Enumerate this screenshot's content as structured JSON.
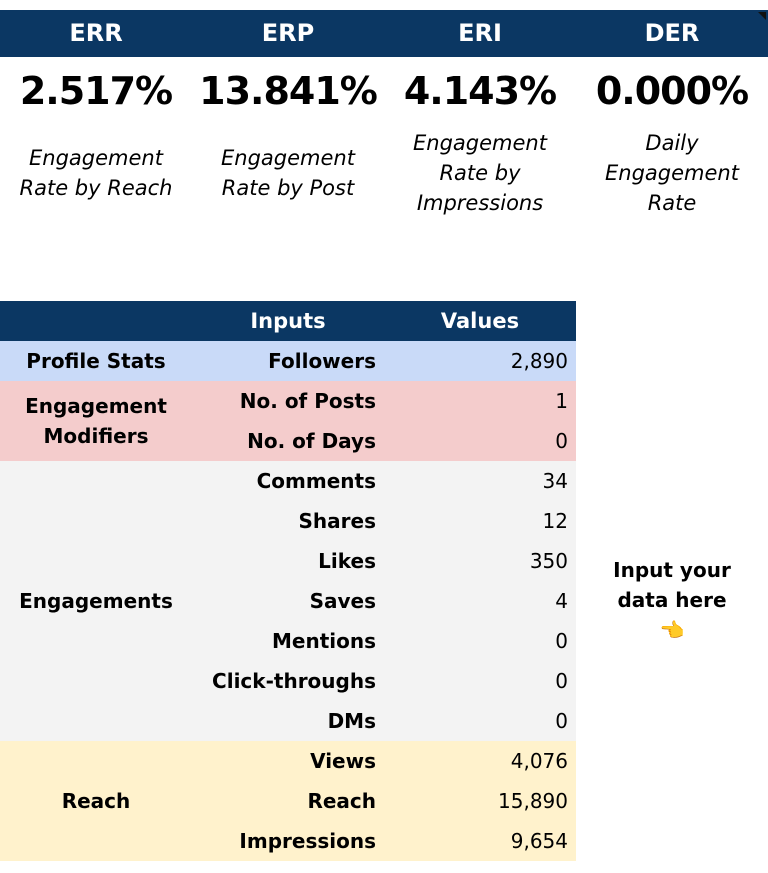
{
  "metrics": [
    {
      "abbr": "ERR",
      "value": "2.517%",
      "desc": "Engagement Rate by Reach"
    },
    {
      "abbr": "ERP",
      "value": "13.841%",
      "desc": "Engagement Rate by Post"
    },
    {
      "abbr": "ERI",
      "value": "4.143%",
      "desc": "Engagement Rate by Impressions"
    },
    {
      "abbr": "DER",
      "value": "0.000%",
      "desc": "Daily Engagement Rate"
    }
  ],
  "table": {
    "headers": [
      "",
      "Inputs",
      "Values"
    ],
    "groups": [
      {
        "label": "Profile Stats",
        "color": "#c9daf8",
        "rows": [
          {
            "input": "Followers",
            "value": "2,890"
          }
        ]
      },
      {
        "label": "Engagement Modifiers",
        "color": "#f4cccc",
        "rows": [
          {
            "input": "No. of Posts",
            "value": "1"
          },
          {
            "input": "No. of Days",
            "value": "0"
          }
        ]
      },
      {
        "label": "Engagements",
        "color": "#f3f3f3",
        "rows": [
          {
            "input": "Comments",
            "value": "34"
          },
          {
            "input": "Shares",
            "value": "12"
          },
          {
            "input": "Likes",
            "value": "350"
          },
          {
            "input": "Saves",
            "value": "4"
          },
          {
            "input": "Mentions",
            "value": "0"
          },
          {
            "input": "Click-throughs",
            "value": "0"
          },
          {
            "input": "DMs",
            "value": "0"
          }
        ]
      },
      {
        "label": "Reach",
        "color": "#fff2cc",
        "rows": [
          {
            "input": "Views",
            "value": "4,076"
          },
          {
            "input": "Reach",
            "value": "15,890"
          },
          {
            "input": "Impressions",
            "value": "9,654"
          }
        ]
      }
    ]
  },
  "note": {
    "text": "Input your data here",
    "icon": "pointing-left-hand-icon",
    "emoji": "👈"
  },
  "colors": {
    "header": "#0b3763"
  }
}
